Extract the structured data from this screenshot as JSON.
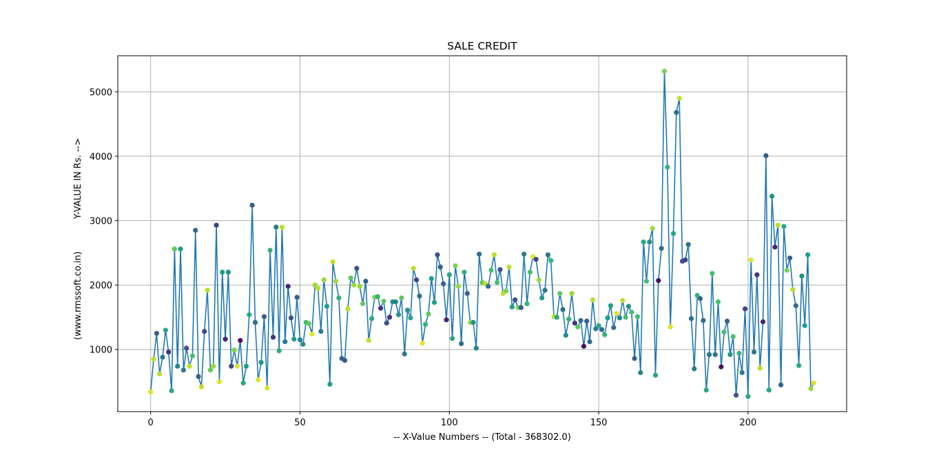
{
  "chart_data": {
    "type": "line",
    "title": "SALE CREDIT",
    "xlabel": "-- X-Value Numbers -- (Total - 368302.0)",
    "ylabel_lines": [
      "(www.rmssoft.co.in)",
      "Y-VALUE IN Rs. -->"
    ],
    "xlim": [
      -11,
      233
    ],
    "ylim": [
      35,
      5560
    ],
    "xticks": [
      0,
      50,
      100,
      150,
      200
    ],
    "yticks": [
      1000,
      2000,
      3000,
      4000,
      5000
    ],
    "grid": true,
    "line_color": "#1f77b4",
    "marker_colormap": "viridis",
    "series": [
      {
        "y": [
          340,
          850,
          1250,
          620,
          880,
          1300,
          960,
          360,
          2560,
          740,
          2560,
          680,
          1020,
          740,
          900,
          2850,
          580,
          420,
          1280,
          1920,
          680,
          740,
          2930,
          500,
          2200,
          1160,
          2200,
          740,
          990,
          740,
          1140,
          480,
          740,
          1540,
          3240,
          1420,
          530,
          800,
          1510,
          400,
          2540,
          1190,
          2900,
          980,
          2900,
          1120,
          1980,
          1490,
          1160,
          1810,
          1150,
          1080,
          1420,
          1400,
          1240,
          2000,
          1950,
          1280,
          2080,
          1670,
          460,
          2360,
          2060,
          1800,
          860,
          830,
          1630,
          2110,
          2000,
          2260,
          1980,
          1710,
          2060,
          1140,
          1480,
          1810,
          1820,
          1640,
          1750,
          1410,
          1500,
          1740,
          1740,
          1540,
          1800,
          930,
          1610,
          1490,
          2260,
          2080,
          1830,
          1100,
          1390,
          1550,
          2100,
          1730,
          2470,
          2280,
          2020,
          1460,
          2160,
          1170,
          2300,
          1980,
          1090,
          2200,
          1870,
          1420,
          1420,
          1020,
          2480,
          2040,
          2020,
          1980,
          2230,
          2470,
          2040,
          2240,
          1870,
          1910,
          2280,
          1660,
          1770,
          1650,
          1650,
          2480,
          1710,
          2200,
          2440,
          2400,
          2080,
          1800,
          1920,
          2470,
          2380,
          1510,
          1500,
          1870,
          1620,
          1220,
          1470,
          1870,
          1410,
          1350,
          1450,
          1050,
          1440,
          1120,
          1770,
          1320,
          1370,
          1310,
          1230,
          1490,
          1680,
          1340,
          1560,
          1490,
          1760,
          1500,
          1670,
          1580,
          860,
          1510,
          640,
          2670,
          2060,
          2670,
          2880,
          600,
          2070,
          2570,
          5320,
          3830,
          1350,
          2800,
          4680,
          4900,
          2370,
          2390,
          2630,
          1480,
          700,
          1840,
          1790,
          1450,
          370,
          920,
          2180,
          920,
          1740,
          730,
          1270,
          1440,
          920,
          1200,
          290,
          940,
          640,
          1630,
          270,
          2390,
          960,
          2160,
          710,
          1430,
          4010,
          370,
          3380,
          2590,
          2930,
          450,
          2910,
          2230,
          2420,
          1930,
          1680,
          750,
          2140,
          1370,
          2470,
          390,
          480
        ],
        "colors": [
          0.95,
          0.9,
          0.3,
          0.9,
          0.4,
          0.6,
          0.15,
          0.6,
          0.75,
          0.45,
          0.55,
          0.4,
          0.25,
          0.9,
          0.7,
          0.35,
          0.3,
          0.9,
          0.2,
          0.9,
          0.75,
          0.85,
          0.2,
          0.95,
          0.55,
          0.1,
          0.5,
          0.2,
          0.8,
          0.95,
          0.05,
          0.6,
          0.55,
          0.6,
          0.3,
          0.35,
          0.95,
          0.5,
          0.3,
          0.95,
          0.65,
          0.15,
          0.4,
          0.6,
          0.9,
          0.4,
          0.1,
          0.25,
          0.55,
          0.3,
          0.45,
          0.5,
          0.7,
          0.75,
          0.95,
          0.85,
          0.9,
          0.4,
          0.85,
          0.55,
          0.55,
          0.9,
          0.85,
          0.65,
          0.3,
          0.3,
          0.9,
          0.75,
          0.85,
          0.25,
          0.85,
          0.75,
          0.3,
          0.9,
          0.6,
          0.8,
          0.65,
          0.15,
          0.75,
          0.25,
          0.15,
          0.5,
          0.45,
          0.5,
          0.75,
          0.4,
          0.5,
          0.6,
          0.9,
          0.2,
          0.35,
          0.95,
          0.65,
          0.75,
          0.55,
          0.55,
          0.25,
          0.3,
          0.3,
          0.1,
          0.6,
          0.6,
          0.8,
          0.85,
          0.35,
          0.65,
          0.3,
          0.85,
          0.5,
          0.45,
          0.35,
          0.75,
          0.9,
          0.35,
          0.7,
          0.9,
          0.7,
          0.25,
          0.9,
          0.8,
          0.9,
          0.55,
          0.25,
          0.8,
          0.3,
          0.4,
          0.65,
          0.7,
          0.95,
          0.2,
          0.85,
          0.55,
          0.4,
          0.4,
          0.65,
          0.9,
          0.6,
          0.75,
          0.35,
          0.5,
          0.65,
          0.85,
          0.15,
          0.75,
          0.35,
          0.05,
          0.3,
          0.35,
          0.9,
          0.45,
          0.6,
          0.35,
          0.65,
          0.55,
          0.55,
          0.35,
          0.95,
          0.45,
          0.9,
          0.7,
          0.5,
          0.7,
          0.3,
          0.7,
          0.45,
          0.6,
          0.7,
          0.5,
          0.85,
          0.6,
          0.05,
          0.35,
          0.8,
          0.65,
          0.95,
          0.6,
          0.35,
          0.9,
          0.25,
          0.2,
          0.35,
          0.35,
          0.4,
          0.65,
          0.35,
          0.35,
          0.6,
          0.4,
          0.7,
          0.4,
          0.7,
          0.05,
          0.7,
          0.3,
          0.5,
          0.7,
          0.25,
          0.65,
          0.4,
          0.2,
          0.6,
          0.95,
          0.4,
          0.15,
          0.9,
          0.1,
          0.3,
          0.6,
          0.5,
          0.1,
          0.9,
          0.3,
          0.6,
          0.8,
          0.3,
          0.9,
          0.35,
          0.6,
          0.5,
          0.55,
          0.55,
          0.85,
          0.95,
          0.05,
          0.7
        ]
      }
    ]
  }
}
